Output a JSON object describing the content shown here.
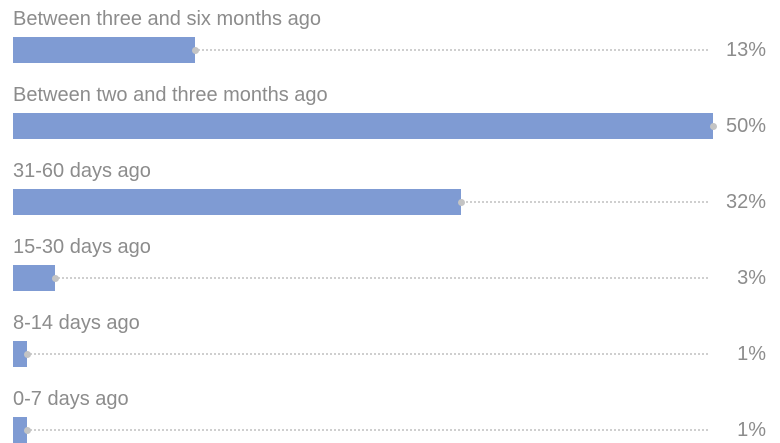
{
  "chart_data": {
    "type": "bar",
    "orientation": "horizontal",
    "categories": [
      "Between three and six months ago",
      "Between two and three months ago",
      "31-60 days ago",
      "15-30 days ago",
      "8-14 days ago",
      "0-7 days ago"
    ],
    "values": [
      13,
      50,
      32,
      3,
      1,
      1
    ],
    "value_labels": [
      "13%",
      "50%",
      "32%",
      "3%",
      "1%",
      "1%"
    ],
    "value_unit": "%",
    "xlim": [
      0,
      50
    ],
    "grid": false,
    "legend": "none",
    "colors": {
      "bar": "#7f9bd3",
      "text": "#8c8c8c",
      "leader": "#cfcfcf",
      "marker": "#c4c4c4"
    }
  }
}
